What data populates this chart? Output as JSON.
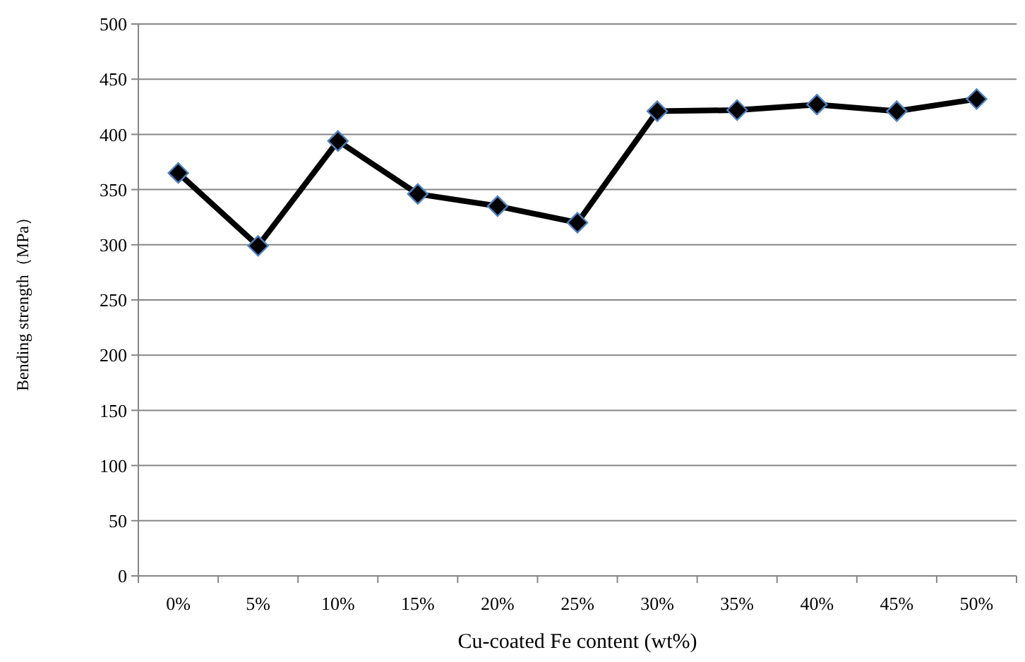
{
  "chart_data": {
    "type": "line",
    "xlabel": "Cu-coated Fe content (wt%)",
    "ylabel": "Bending strength（MPa）",
    "categories": [
      "0%",
      "5%",
      "10%",
      "15%",
      "20%",
      "25%",
      "30%",
      "35%",
      "40%",
      "45%",
      "50%"
    ],
    "series": [
      {
        "color": "#000000",
        "values": [
          365,
          299,
          394,
          346,
          335,
          320,
          421,
          422,
          427,
          421,
          432
        ]
      }
    ],
    "ylim": [
      0,
      500
    ],
    "yticks": [
      0,
      50,
      100,
      150,
      200,
      250,
      300,
      350,
      400,
      450,
      500
    ],
    "grid": "y",
    "marker": "diamond",
    "line_style": "solid"
  }
}
